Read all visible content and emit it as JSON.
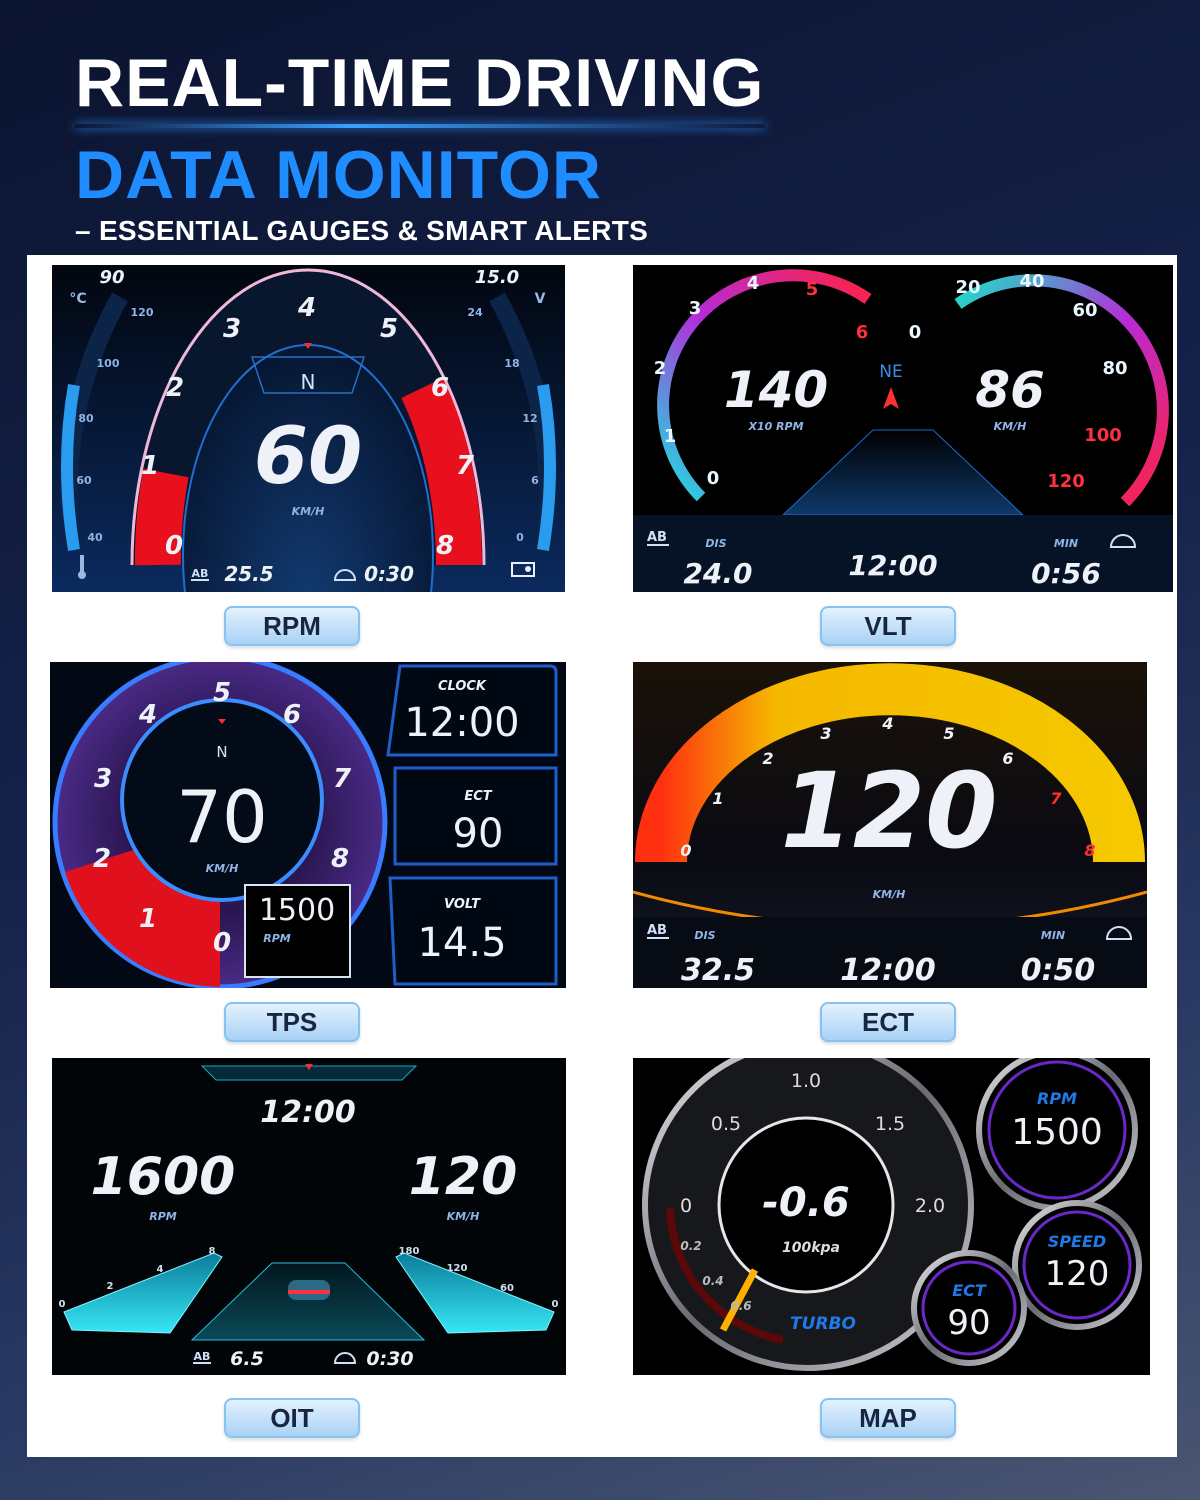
{
  "header": {
    "title_line1": "REAL-TIME DRIVING",
    "title_line2": "DATA MONITOR",
    "subtitle": "– ESSENTIAL GAUGES & SMART ALERTS"
  },
  "colors": {
    "title_accent": "#1f8cff",
    "rpm_redline": "#e8101c",
    "ect_arc": "#f5b800",
    "label_pill": "#bfe0fa"
  },
  "screens": [
    {
      "label": "RPM",
      "speed": "60",
      "speed_unit": "KM/H",
      "compass": "N",
      "rpm_scale": [
        "0",
        "1",
        "2",
        "3",
        "4",
        "5",
        "6",
        "7",
        "8"
      ],
      "temp_max": "90",
      "temp_unit": "°C",
      "temp_scale": [
        "120",
        "100",
        "80",
        "60",
        "40"
      ],
      "volt_max": "15.0",
      "volt_unit": "V",
      "volt_scale": [
        "24",
        "18",
        "12",
        "6",
        "0"
      ],
      "trip": "25.5",
      "time": "0:30",
      "icons": [
        "coolant-temp-icon",
        "trip-ab-icon",
        "gauge-icon",
        "battery-icon"
      ]
    },
    {
      "label": "VLT",
      "rpm": "140",
      "rpm_unit": "X10 RPM",
      "speed": "86",
      "speed_unit": "KM/H",
      "heading": "NE",
      "rpm_scale": [
        "0",
        "1",
        "2",
        "3",
        "4",
        "5",
        "6"
      ],
      "speed_scale": [
        "0",
        "20",
        "40",
        "60",
        "80",
        "100",
        "120"
      ],
      "dis_label": "DIS",
      "dis": "24.0",
      "clock": "12:00",
      "min_label": "MIN",
      "min": "0:56"
    },
    {
      "label": "TPS",
      "speed": "70",
      "speed_unit": "KM/H",
      "compass": "N",
      "rpm_scale": [
        "0",
        "1",
        "2",
        "3",
        "4",
        "5",
        "6",
        "7",
        "8"
      ],
      "rpm": "1500",
      "rpm_unit": "RPM",
      "clock_label": "CLOCK",
      "clock": "12:00",
      "ect_label": "ECT",
      "ect": "90",
      "volt_label": "VOLT",
      "volt": "14.5"
    },
    {
      "label": "ECT",
      "speed": "120",
      "speed_unit": "KM/H",
      "rpm_scale": [
        "0",
        "1",
        "2",
        "3",
        "4",
        "5",
        "6",
        "7",
        "8"
      ],
      "dis_label": "DIS",
      "dis": "32.5",
      "clock": "12:00",
      "min_label": "MIN",
      "min": "0:50"
    },
    {
      "label": "OIT",
      "clock": "12:00",
      "rpm": "1600",
      "rpm_unit": "RPM",
      "speed": "120",
      "speed_unit": "KM/H",
      "rpm_scale": [
        "0",
        "2",
        "4",
        "8"
      ],
      "speed_scale": [
        "180",
        "120",
        "60",
        "0"
      ],
      "trip": "6.5",
      "time": "0:30"
    },
    {
      "label": "MAP",
      "boost": "-0.6",
      "boost_unit": "100kpa",
      "gauge_name": "TURBO",
      "boost_scale": [
        "0",
        "0.5",
        "1.0",
        "1.5",
        "2.0"
      ],
      "vacuum_scale": [
        "0.2",
        "0.4",
        "0.6"
      ],
      "rpm_label": "RPM",
      "rpm": "1500",
      "speed_label": "SPEED",
      "speed": "120",
      "ect_label": "ECT",
      "ect": "90"
    }
  ]
}
